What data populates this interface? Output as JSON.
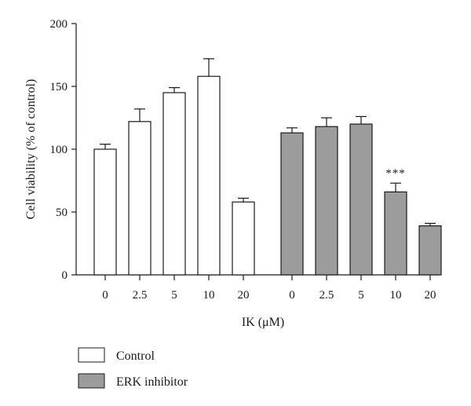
{
  "chart_data": {
    "type": "bar",
    "xlabel": "IK (μM)",
    "ylabel": "Cell viability (% of control)",
    "ylim": [
      0,
      200
    ],
    "yticks": [
      0,
      50,
      100,
      150,
      200
    ],
    "categories": [
      "0",
      "2.5",
      "5",
      "10",
      "20"
    ],
    "series": [
      {
        "name": "Control",
        "color": "#ffffff",
        "values": [
          100,
          122,
          145,
          158,
          58
        ],
        "errors": [
          4,
          10,
          4,
          14,
          3
        ],
        "annotations": [
          "",
          "",
          "",
          "",
          ""
        ]
      },
      {
        "name": "ERK inhibitor",
        "color": "#9c9c9c",
        "values": [
          113,
          118,
          120,
          66,
          39
        ],
        "errors": [
          4,
          7,
          6,
          7,
          2
        ],
        "annotations": [
          "",
          "",
          "",
          "***",
          ""
        ]
      }
    ],
    "grid": false,
    "legend_position": "bottom-left"
  }
}
